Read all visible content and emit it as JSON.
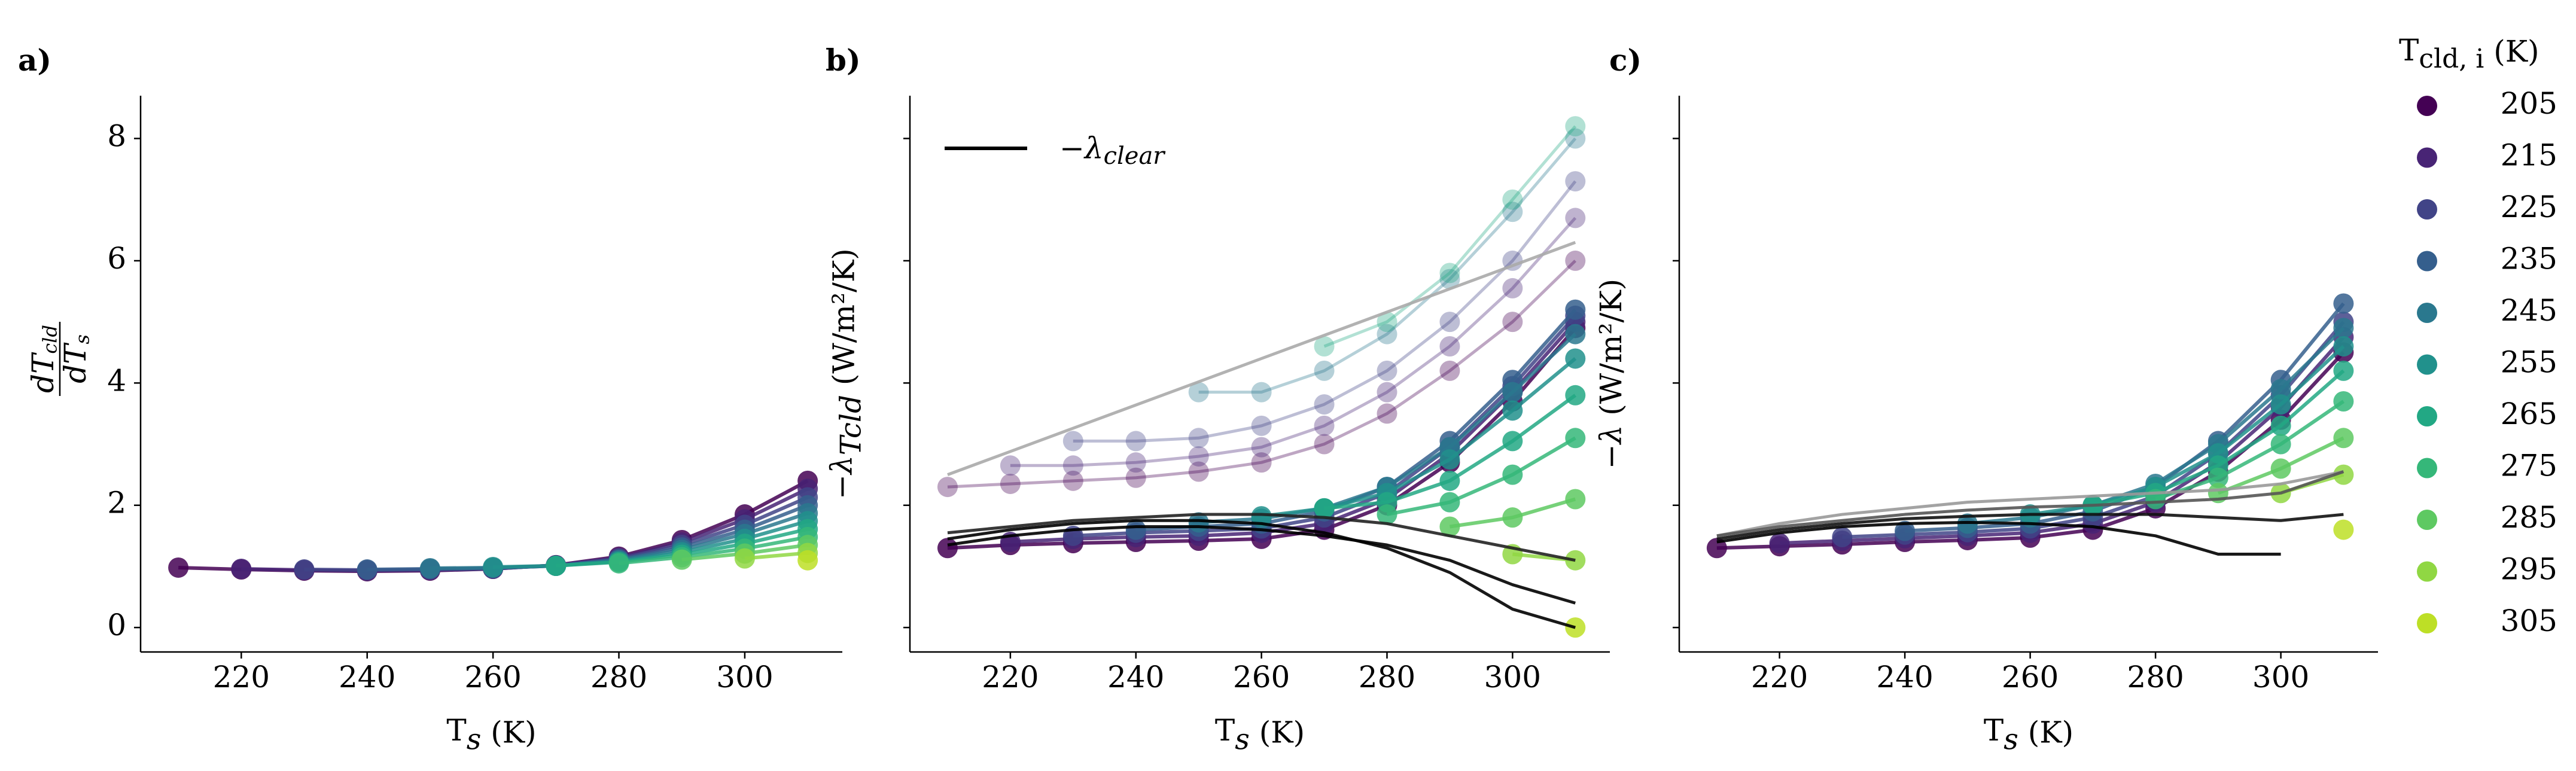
{
  "chart_data": [
    {
      "type": "line",
      "label": "a)",
      "xlabel": [
        {
          "text": "T"
        },
        {
          "text": "s",
          "sub": true,
          "italic": true
        },
        {
          "text": " (K)"
        }
      ],
      "ylabel": {
        "numerator": [
          {
            "text": "dT",
            "italic": true
          },
          {
            "text": "cld",
            "sub": true,
            "italic": true
          }
        ],
        "denominator": [
          {
            "text": "dT",
            "italic": true
          },
          {
            "text": "s",
            "sub": true,
            "italic": true
          }
        ]
      },
      "legend_title": [
        {
          "text": "T"
        },
        {
          "text": "cld, i",
          "sub": true
        },
        {
          "text": " (K)"
        }
      ],
      "xlim": [
        204,
        315.5
      ],
      "ylim": [
        -0.4,
        8.7
      ],
      "xticks": [
        220,
        240,
        260,
        280,
        300
      ],
      "yticks": [
        0,
        2,
        4,
        6,
        8
      ],
      "ytick_labels": true,
      "x": [
        210,
        220,
        230,
        240,
        250,
        260,
        270,
        280,
        290,
        300,
        310
      ],
      "series": [
        {
          "name": "205",
          "color": "#440154",
          "values": [
            0.98,
            0.95,
            0.93,
            0.92,
            0.93,
            0.96,
            1.02,
            1.16,
            1.43,
            1.85,
            2.4
          ]
        },
        {
          "name": "215",
          "color": "#482475",
          "values": [
            null,
            0.96,
            0.94,
            0.93,
            0.94,
            0.96,
            1.02,
            1.14,
            1.39,
            1.77,
            2.27
          ]
        },
        {
          "name": "225",
          "color": "#414487",
          "values": [
            null,
            null,
            0.95,
            0.94,
            0.95,
            0.97,
            1.01,
            1.13,
            1.35,
            1.68,
            2.13
          ]
        },
        {
          "name": "235",
          "color": "#355f8d",
          "values": [
            null,
            null,
            null,
            0.95,
            0.96,
            0.97,
            1.01,
            1.11,
            1.31,
            1.6,
            2.0
          ]
        },
        {
          "name": "245",
          "color": "#2a788e",
          "values": [
            null,
            null,
            null,
            null,
            0.97,
            0.98,
            1.01,
            1.1,
            1.27,
            1.53,
            1.87
          ]
        },
        {
          "name": "255",
          "color": "#21918c",
          "values": [
            null,
            null,
            null,
            null,
            null,
            0.99,
            1.01,
            1.08,
            1.23,
            1.45,
            1.74
          ]
        },
        {
          "name": "265",
          "color": "#22a884",
          "values": [
            null,
            null,
            null,
            null,
            null,
            null,
            1.01,
            1.07,
            1.19,
            1.37,
            1.61
          ]
        },
        {
          "name": "275",
          "color": "#35b779",
          "values": [
            null,
            null,
            null,
            null,
            null,
            null,
            null,
            1.05,
            1.15,
            1.29,
            1.48
          ]
        },
        {
          "name": "285",
          "color": "#5ec962",
          "values": [
            null,
            null,
            null,
            null,
            null,
            null,
            null,
            null,
            1.11,
            1.21,
            1.35
          ]
        },
        {
          "name": "295",
          "color": "#90d743",
          "values": [
            null,
            null,
            null,
            null,
            null,
            null,
            null,
            null,
            null,
            1.13,
            1.22
          ]
        },
        {
          "name": "305",
          "color": "#bddf26",
          "values": [
            null,
            null,
            null,
            null,
            null,
            null,
            null,
            null,
            null,
            null,
            1.1
          ]
        }
      ]
    },
    {
      "type": "line",
      "label": "b)",
      "xlabel": [
        {
          "text": "T"
        },
        {
          "text": "s",
          "sub": true,
          "italic": true
        },
        {
          "text": " (K)"
        }
      ],
      "ylabel": [
        {
          "text": "−λ",
          "italic": true
        },
        {
          "text": "Tcld",
          "sub": true,
          "italic": true
        },
        {
          "text": " (W/m²/K)"
        }
      ],
      "xlim": [
        204,
        315.5
      ],
      "ylim": [
        -0.4,
        8.7
      ],
      "xticks": [
        220,
        240,
        260,
        280,
        300
      ],
      "yticks": [
        0,
        2,
        4,
        6,
        8
      ],
      "ytick_labels": false,
      "x": [
        210,
        220,
        230,
        240,
        250,
        260,
        270,
        280,
        290,
        300,
        310
      ],
      "legend": {
        "label": [
          {
            "text": "−λ",
            "italic": true
          },
          {
            "text": "clear",
            "sub": true,
            "italic": true
          }
        ],
        "color": "#000000",
        "corner": "upper left"
      },
      "faded_series": [
        {
          "color": "#440154",
          "values": [
            2.3,
            2.35,
            2.4,
            2.45,
            2.55,
            2.7,
            3.0,
            3.5,
            4.2,
            5.0,
            6.0
          ]
        },
        {
          "color": "#482475",
          "values": [
            null,
            2.65,
            2.65,
            2.7,
            2.8,
            2.95,
            3.3,
            3.85,
            4.6,
            5.55,
            6.7
          ]
        },
        {
          "color": "#414487",
          "values": [
            null,
            null,
            3.05,
            3.05,
            3.1,
            3.3,
            3.65,
            4.2,
            5.0,
            6.0,
            7.3
          ]
        },
        {
          "color": "#2a788e",
          "values": [
            null,
            null,
            null,
            null,
            3.85,
            3.85,
            4.2,
            4.8,
            5.7,
            6.8,
            8.0
          ]
        },
        {
          "color": "#22a884",
          "values": [
            null,
            null,
            null,
            null,
            null,
            null,
            4.6,
            5.0,
            5.8,
            7.0,
            8.2
          ]
        }
      ],
      "series": [
        {
          "color": "#440154",
          "values": [
            1.3,
            1.35,
            1.38,
            1.4,
            1.42,
            1.45,
            1.6,
            2.0,
            2.7,
            3.7,
            4.9
          ]
        },
        {
          "color": "#482475",
          "values": [
            null,
            1.4,
            1.45,
            1.48,
            1.5,
            1.55,
            1.7,
            2.1,
            2.85,
            3.85,
            5.0
          ]
        },
        {
          "color": "#414487",
          "values": [
            null,
            null,
            1.5,
            1.55,
            1.58,
            1.62,
            1.8,
            2.2,
            2.95,
            3.95,
            5.1
          ]
        },
        {
          "color": "#355f8d",
          "values": [
            null,
            null,
            null,
            1.6,
            1.65,
            1.7,
            1.9,
            2.3,
            3.05,
            4.05,
            5.2
          ]
        },
        {
          "color": "#2a788e",
          "values": [
            null,
            null,
            null,
            null,
            1.72,
            1.78,
            1.95,
            2.3,
            2.95,
            3.85,
            4.8
          ]
        },
        {
          "color": "#21918c",
          "values": [
            null,
            null,
            null,
            null,
            null,
            1.82,
            1.95,
            2.2,
            2.75,
            3.55,
            4.4
          ]
        },
        {
          "color": "#22a884",
          "values": [
            null,
            null,
            null,
            null,
            null,
            null,
            1.95,
            2.05,
            2.4,
            3.05,
            3.8
          ]
        },
        {
          "color": "#35b779",
          "values": [
            null,
            null,
            null,
            null,
            null,
            null,
            null,
            1.85,
            2.05,
            2.5,
            3.1
          ]
        },
        {
          "color": "#5ec962",
          "values": [
            null,
            null,
            null,
            null,
            null,
            null,
            null,
            null,
            1.65,
            1.8,
            2.1
          ]
        },
        {
          "color": "#90d743",
          "values": [
            null,
            null,
            null,
            null,
            null,
            null,
            null,
            null,
            null,
            1.2,
            1.1
          ]
        },
        {
          "color": "#bddf26",
          "values": [
            null,
            null,
            null,
            null,
            null,
            null,
            null,
            null,
            null,
            null,
            0.0
          ]
        }
      ],
      "clear_lines": [
        {
          "color": "#aaaaaa",
          "values": [
            2.5,
            2.88,
            3.26,
            3.64,
            4.02,
            4.4,
            4.78,
            5.16,
            5.54,
            5.92,
            6.3
          ]
        },
        {
          "color": "#000000",
          "values": [
            1.45,
            1.6,
            1.7,
            1.75,
            1.75,
            1.7,
            1.55,
            1.3,
            0.9,
            0.3,
            0.0
          ]
        },
        {
          "color": "#000000",
          "values": [
            1.35,
            1.5,
            1.6,
            1.65,
            1.65,
            1.6,
            1.5,
            1.35,
            1.1,
            0.7,
            0.4
          ]
        },
        {
          "color": "#222222",
          "values": [
            1.55,
            1.65,
            1.75,
            1.8,
            1.85,
            1.85,
            1.8,
            1.7,
            1.5,
            1.3,
            1.1
          ]
        }
      ]
    },
    {
      "type": "line",
      "label": "c)",
      "xlabel": [
        {
          "text": "T"
        },
        {
          "text": "s",
          "sub": true,
          "italic": true
        },
        {
          "text": " (K)"
        }
      ],
      "ylabel": [
        {
          "text": "−λ",
          "italic": true
        },
        {
          "text": " (W/m²/K)"
        }
      ],
      "xlim": [
        204,
        315.5
      ],
      "ylim": [
        -0.4,
        8.7
      ],
      "xticks": [
        220,
        240,
        260,
        280,
        300
      ],
      "yticks": [
        0,
        2,
        4,
        6,
        8
      ],
      "ytick_labels": false,
      "x": [
        210,
        220,
        230,
        240,
        250,
        260,
        270,
        280,
        290,
        300,
        310
      ],
      "series": [
        {
          "color": "#440154",
          "values": [
            1.3,
            1.33,
            1.36,
            1.4,
            1.43,
            1.47,
            1.6,
            1.95,
            2.55,
            3.4,
            4.5
          ]
        },
        {
          "color": "#482475",
          "values": [
            null,
            1.38,
            1.42,
            1.46,
            1.5,
            1.55,
            1.7,
            2.05,
            2.7,
            3.6,
            4.75
          ]
        },
        {
          "color": "#414487",
          "values": [
            null,
            null,
            1.48,
            1.52,
            1.56,
            1.62,
            1.8,
            2.15,
            2.85,
            3.8,
            5.0
          ]
        },
        {
          "color": "#355f8d",
          "values": [
            null,
            null,
            null,
            1.58,
            1.63,
            1.7,
            1.9,
            2.3,
            3.05,
            4.05,
            5.3
          ]
        },
        {
          "color": "#2a788e",
          "values": [
            null,
            null,
            null,
            null,
            1.7,
            1.8,
            2.0,
            2.35,
            3.0,
            3.9,
            4.9
          ]
        },
        {
          "color": "#21918c",
          "values": [
            null,
            null,
            null,
            null,
            null,
            1.85,
            2.0,
            2.3,
            2.85,
            3.65,
            4.6
          ]
        },
        {
          "color": "#22a884",
          "values": [
            null,
            null,
            null,
            null,
            null,
            null,
            2.0,
            2.2,
            2.65,
            3.3,
            4.2
          ]
        },
        {
          "color": "#35b779",
          "values": [
            null,
            null,
            null,
            null,
            null,
            null,
            null,
            2.1,
            2.45,
            3.0,
            3.7
          ]
        },
        {
          "color": "#5ec962",
          "values": [
            null,
            null,
            null,
            null,
            null,
            null,
            null,
            null,
            2.2,
            2.6,
            3.1
          ]
        },
        {
          "color": "#90d743",
          "values": [
            null,
            null,
            null,
            null,
            null,
            null,
            null,
            null,
            null,
            2.2,
            2.5
          ]
        },
        {
          "color": "#bddf26",
          "values": [
            null,
            null,
            null,
            null,
            null,
            null,
            null,
            null,
            null,
            null,
            1.6
          ]
        }
      ],
      "clear_lines": [
        {
          "color": "#999999",
          "values": [
            1.5,
            1.7,
            1.85,
            1.95,
            2.05,
            2.1,
            2.15,
            2.2,
            2.25,
            2.35,
            2.55
          ]
        },
        {
          "color": "#000000",
          "values": [
            1.4,
            1.55,
            1.65,
            1.7,
            1.72,
            1.7,
            1.65,
            1.5,
            1.2,
            1.2,
            null
          ]
        },
        {
          "color": "#111111",
          "values": [
            1.45,
            1.6,
            1.7,
            1.78,
            1.82,
            1.85,
            1.85,
            1.85,
            1.8,
            1.75,
            1.85
          ]
        },
        {
          "color": "#555555",
          "values": [
            1.5,
            1.65,
            1.75,
            1.85,
            1.92,
            1.97,
            2.0,
            2.05,
            2.1,
            2.2,
            2.55
          ]
        }
      ]
    }
  ]
}
